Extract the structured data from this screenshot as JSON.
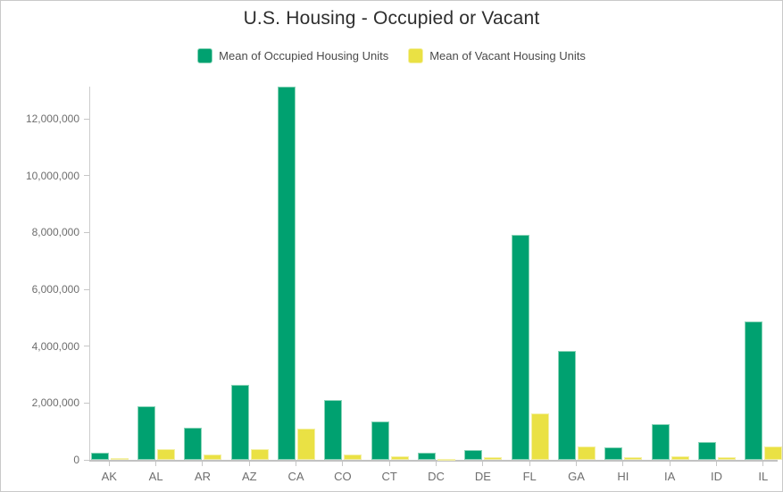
{
  "title": "U.S. Housing - Occupied or Vacant",
  "legend": {
    "items": [
      {
        "label": "Mean of Occupied Housing Units",
        "color": "#00a170",
        "border_color": "#8ad4b8"
      },
      {
        "label": "Mean of Vacant Housing Units",
        "color": "#eae144",
        "border_color": "#f4f0a4"
      }
    ]
  },
  "colors": {
    "occupied_fill": "#00a170",
    "occupied_edge": "#8ad4b8",
    "vacant_fill": "#eae144",
    "vacant_edge": "#f4f0a4",
    "axis_line": "#c6c6c6",
    "axis_text": "#6e6e6e",
    "title_text": "#2e2e2e",
    "legend_text": "#4a4a4a"
  },
  "chart_data": {
    "type": "bar",
    "title": "U.S. Housing - Occupied or Vacant",
    "xlabel": "",
    "ylabel": "",
    "categories": [
      "AK",
      "AL",
      "AR",
      "AZ",
      "CA",
      "CO",
      "CT",
      "DC",
      "DE",
      "FL",
      "GA",
      "HI",
      "IA",
      "ID",
      "IL"
    ],
    "series": [
      {
        "name": "Mean of Occupied Housing Units",
        "color": "#00a170",
        "values": [
          250000,
          1880000,
          1140000,
          2630000,
          13120000,
          2090000,
          1350000,
          260000,
          360000,
          7930000,
          3830000,
          440000,
          1270000,
          630000,
          4870000
        ]
      },
      {
        "name": "Mean of Vacant Housing Units",
        "color": "#eae144",
        "values": [
          60000,
          380000,
          180000,
          390000,
          1090000,
          200000,
          120000,
          30000,
          80000,
          1620000,
          460000,
          80000,
          120000,
          90000,
          480000
        ]
      }
    ],
    "ylim": [
      0,
      13200000
    ],
    "yticks": [
      0,
      2000000,
      4000000,
      6000000,
      8000000,
      10000000,
      12000000
    ],
    "ytick_labels": [
      "0",
      "2,000,000",
      "4,000,000",
      "6,000,000",
      "8,000,000",
      "10,000,000",
      "12,000,000"
    ],
    "grid": false,
    "legend_position": "top"
  }
}
